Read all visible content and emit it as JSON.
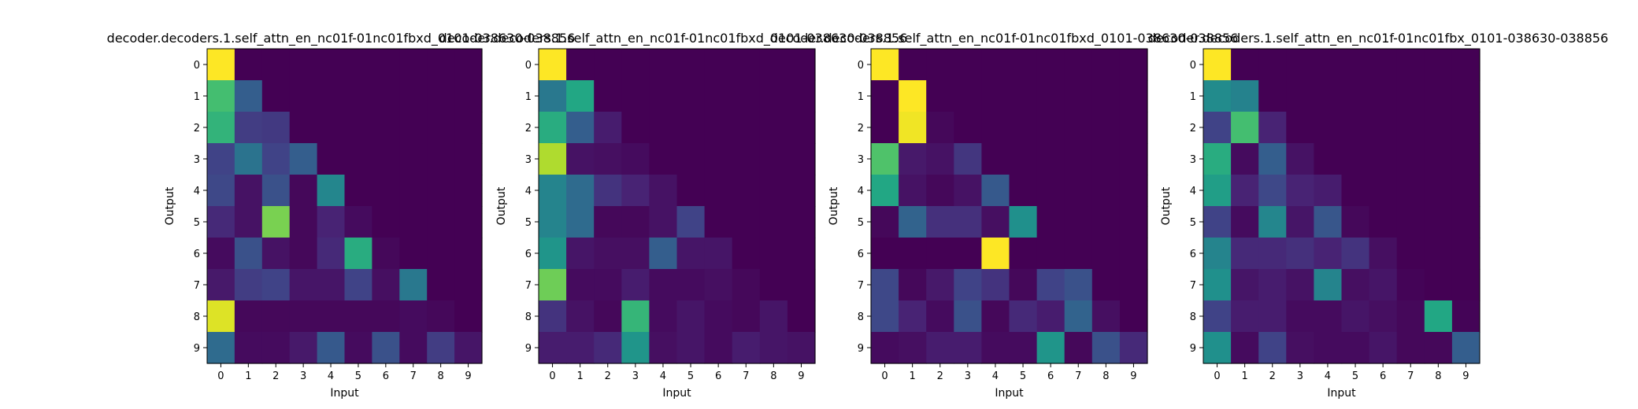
{
  "colormap": "viridis",
  "chart_data": [
    {
      "type": "heatmap",
      "title": "decoder.decoders.1.self_attn_en_nc01f-01nc01fbxd_0101-038630-038856",
      "xlabel": "Input",
      "ylabel": "Output",
      "x_ticks": [
        "0",
        "1",
        "2",
        "3",
        "4",
        "5",
        "6",
        "7",
        "8",
        "9"
      ],
      "y_ticks": [
        "0",
        "1",
        "2",
        "3",
        "4",
        "5",
        "6",
        "7",
        "8",
        "9"
      ],
      "zlim": [
        0,
        1
      ],
      "values": [
        [
          1.0,
          0.0,
          0.0,
          0.0,
          0.0,
          0.0,
          0.0,
          0.0,
          0.0,
          0.0
        ],
        [
          0.7,
          0.3,
          0.0,
          0.0,
          0.0,
          0.0,
          0.0,
          0.0,
          0.0,
          0.0
        ],
        [
          0.65,
          0.18,
          0.17,
          0.0,
          0.0,
          0.0,
          0.0,
          0.0,
          0.0,
          0.0
        ],
        [
          0.2,
          0.38,
          0.2,
          0.3,
          0.0,
          0.0,
          0.0,
          0.0,
          0.0,
          0.0
        ],
        [
          0.22,
          0.05,
          0.25,
          0.02,
          0.46,
          0.0,
          0.0,
          0.0,
          0.0,
          0.0
        ],
        [
          0.12,
          0.05,
          0.8,
          0.02,
          0.1,
          0.03,
          0.0,
          0.0,
          0.0,
          0.0
        ],
        [
          0.03,
          0.25,
          0.05,
          0.02,
          0.12,
          0.62,
          0.02,
          0.0,
          0.0,
          0.0
        ],
        [
          0.07,
          0.18,
          0.2,
          0.06,
          0.06,
          0.2,
          0.04,
          0.4,
          0.0,
          0.0
        ],
        [
          0.95,
          0.02,
          0.02,
          0.02,
          0.02,
          0.02,
          0.02,
          0.03,
          0.02,
          0.0
        ],
        [
          0.35,
          0.03,
          0.03,
          0.07,
          0.28,
          0.03,
          0.25,
          0.03,
          0.18,
          0.06
        ]
      ]
    },
    {
      "type": "heatmap",
      "title": "decoder.decoders.1.self_attn_en_nc01f-01nc01fbxd_0101-038630-038856",
      "xlabel": "Input",
      "ylabel": "Output",
      "x_ticks": [
        "0",
        "1",
        "2",
        "3",
        "4",
        "5",
        "6",
        "7",
        "8",
        "9"
      ],
      "y_ticks": [
        "0",
        "1",
        "2",
        "3",
        "4",
        "5",
        "6",
        "7",
        "8",
        "9"
      ],
      "zlim": [
        0,
        1
      ],
      "values": [
        [
          1.0,
          0.0,
          0.0,
          0.0,
          0.0,
          0.0,
          0.0,
          0.0,
          0.0,
          0.0
        ],
        [
          0.4,
          0.6,
          0.0,
          0.0,
          0.0,
          0.0,
          0.0,
          0.0,
          0.0,
          0.0
        ],
        [
          0.62,
          0.3,
          0.08,
          0.0,
          0.0,
          0.0,
          0.0,
          0.0,
          0.0,
          0.0
        ],
        [
          0.88,
          0.05,
          0.04,
          0.03,
          0.0,
          0.0,
          0.0,
          0.0,
          0.0,
          0.0
        ],
        [
          0.45,
          0.35,
          0.15,
          0.1,
          0.05,
          0.0,
          0.0,
          0.0,
          0.0,
          0.0
        ],
        [
          0.45,
          0.35,
          0.02,
          0.02,
          0.05,
          0.2,
          0.0,
          0.0,
          0.0,
          0.0
        ],
        [
          0.52,
          0.06,
          0.04,
          0.04,
          0.3,
          0.06,
          0.06,
          0.0,
          0.0,
          0.0
        ],
        [
          0.78,
          0.03,
          0.03,
          0.08,
          0.03,
          0.03,
          0.04,
          0.02,
          0.0,
          0.0
        ],
        [
          0.15,
          0.05,
          0.02,
          0.66,
          0.03,
          0.06,
          0.03,
          0.02,
          0.06,
          0.0
        ],
        [
          0.08,
          0.08,
          0.12,
          0.52,
          0.04,
          0.06,
          0.03,
          0.08,
          0.06,
          0.05
        ]
      ]
    },
    {
      "type": "heatmap",
      "title": "decoder.decoders.1.self_attn_en_nc01f-01nc01fbxd_0101-038630-038856",
      "xlabel": "Input",
      "ylabel": "Output",
      "x_ticks": [
        "0",
        "1",
        "2",
        "3",
        "4",
        "5",
        "6",
        "7",
        "8",
        "9"
      ],
      "y_ticks": [
        "0",
        "1",
        "2",
        "3",
        "4",
        "5",
        "6",
        "7",
        "8",
        "9"
      ],
      "zlim": [
        0,
        1
      ],
      "values": [
        [
          1.0,
          0.0,
          0.0,
          0.0,
          0.0,
          0.0,
          0.0,
          0.0,
          0.0,
          0.0
        ],
        [
          0.0,
          1.0,
          0.0,
          0.0,
          0.0,
          0.0,
          0.0,
          0.0,
          0.0,
          0.0
        ],
        [
          0.0,
          0.98,
          0.02,
          0.0,
          0.0,
          0.0,
          0.0,
          0.0,
          0.0,
          0.0
        ],
        [
          0.72,
          0.07,
          0.05,
          0.16,
          0.0,
          0.0,
          0.0,
          0.0,
          0.0,
          0.0
        ],
        [
          0.6,
          0.05,
          0.02,
          0.05,
          0.28,
          0.0,
          0.0,
          0.0,
          0.0,
          0.0
        ],
        [
          0.02,
          0.32,
          0.14,
          0.14,
          0.04,
          0.5,
          0.0,
          0.0,
          0.0,
          0.0
        ],
        [
          0.0,
          0.0,
          0.0,
          0.0,
          1.0,
          0.0,
          0.0,
          0.0,
          0.0,
          0.0
        ],
        [
          0.22,
          0.02,
          0.07,
          0.2,
          0.15,
          0.02,
          0.2,
          0.25,
          0.0,
          0.0
        ],
        [
          0.22,
          0.1,
          0.03,
          0.25,
          0.02,
          0.12,
          0.08,
          0.32,
          0.04,
          0.0
        ],
        [
          0.03,
          0.04,
          0.08,
          0.08,
          0.03,
          0.03,
          0.52,
          0.02,
          0.25,
          0.12
        ]
      ]
    },
    {
      "type": "heatmap",
      "title": "decoder.decoders.1.self_attn_en_nc01f-01nc01fbx_0101-038630-038856",
      "xlabel": "Input",
      "ylabel": "Output",
      "x_ticks": [
        "0",
        "1",
        "2",
        "3",
        "4",
        "5",
        "6",
        "7",
        "8",
        "9"
      ],
      "y_ticks": [
        "0",
        "1",
        "2",
        "3",
        "4",
        "5",
        "6",
        "7",
        "8",
        "9"
      ],
      "zlim": [
        0,
        1
      ],
      "values": [
        [
          1.0,
          0.0,
          0.0,
          0.0,
          0.0,
          0.0,
          0.0,
          0.0,
          0.0,
          0.0
        ],
        [
          0.48,
          0.44,
          0.0,
          0.0,
          0.0,
          0.0,
          0.0,
          0.0,
          0.0,
          0.0
        ],
        [
          0.2,
          0.7,
          0.1,
          0.0,
          0.0,
          0.0,
          0.0,
          0.0,
          0.0,
          0.0
        ],
        [
          0.62,
          0.03,
          0.3,
          0.05,
          0.0,
          0.0,
          0.0,
          0.0,
          0.0,
          0.0
        ],
        [
          0.56,
          0.1,
          0.22,
          0.1,
          0.08,
          0.0,
          0.0,
          0.0,
          0.0,
          0.0
        ],
        [
          0.2,
          0.03,
          0.46,
          0.06,
          0.27,
          0.02,
          0.0,
          0.0,
          0.0,
          0.0
        ],
        [
          0.45,
          0.12,
          0.12,
          0.14,
          0.1,
          0.15,
          0.04,
          0.0,
          0.0,
          0.0
        ],
        [
          0.5,
          0.06,
          0.08,
          0.05,
          0.45,
          0.04,
          0.06,
          0.01,
          0.0,
          0.0
        ],
        [
          0.2,
          0.08,
          0.08,
          0.03,
          0.03,
          0.06,
          0.04,
          0.02,
          0.6,
          0.01
        ],
        [
          0.5,
          0.03,
          0.2,
          0.04,
          0.03,
          0.03,
          0.06,
          0.02,
          0.02,
          0.3
        ]
      ]
    }
  ]
}
